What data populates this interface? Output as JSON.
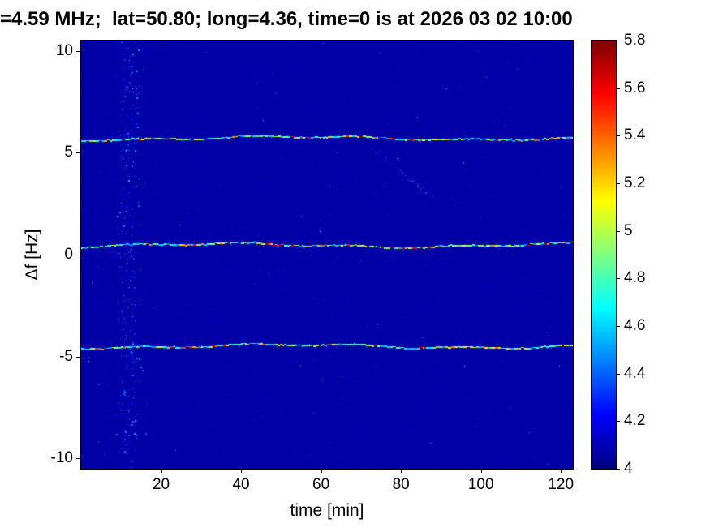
{
  "chart_data": {
    "type": "heatmap",
    "title": "=4.59 MHz;  lat=50.80; long=4.36, time=0 is at 2026 03 02 10:00",
    "xlabel": "time [min]",
    "ylabel": "Δf [Hz]",
    "xlim": [
      0,
      123
    ],
    "ylim": [
      -10.5,
      10.5
    ],
    "x_ticks": [
      20,
      40,
      60,
      80,
      100,
      120
    ],
    "y_ticks": [
      10,
      5,
      0,
      -5,
      -10
    ],
    "grid": false,
    "legend": "none",
    "colormap": "jet",
    "colorbar": {
      "min": 4,
      "max": 5.8,
      "ticks": [
        5.8,
        5.6,
        5.4,
        5.2,
        5,
        4.8,
        4.6,
        4.4,
        4.2,
        4
      ]
    },
    "background_value": 4.07,
    "traces": [
      {
        "name": "upper-sideband-trace",
        "freq_hz": 5.7,
        "value_range": [
          4.45,
          5.75
        ]
      },
      {
        "name": "carrier-trace",
        "freq_hz": 0.45,
        "value_range": [
          4.45,
          5.75
        ]
      },
      {
        "name": "lower-sideband-trace",
        "freq_hz": -4.5,
        "value_range": [
          4.45,
          5.75
        ]
      }
    ],
    "vertical_noise_band": {
      "time_min": 12,
      "width_min": 3
    },
    "diagonal_feature": {
      "t_start": 73,
      "f_start": 5.2,
      "t_end": 88,
      "f_end": 2.8
    }
  }
}
